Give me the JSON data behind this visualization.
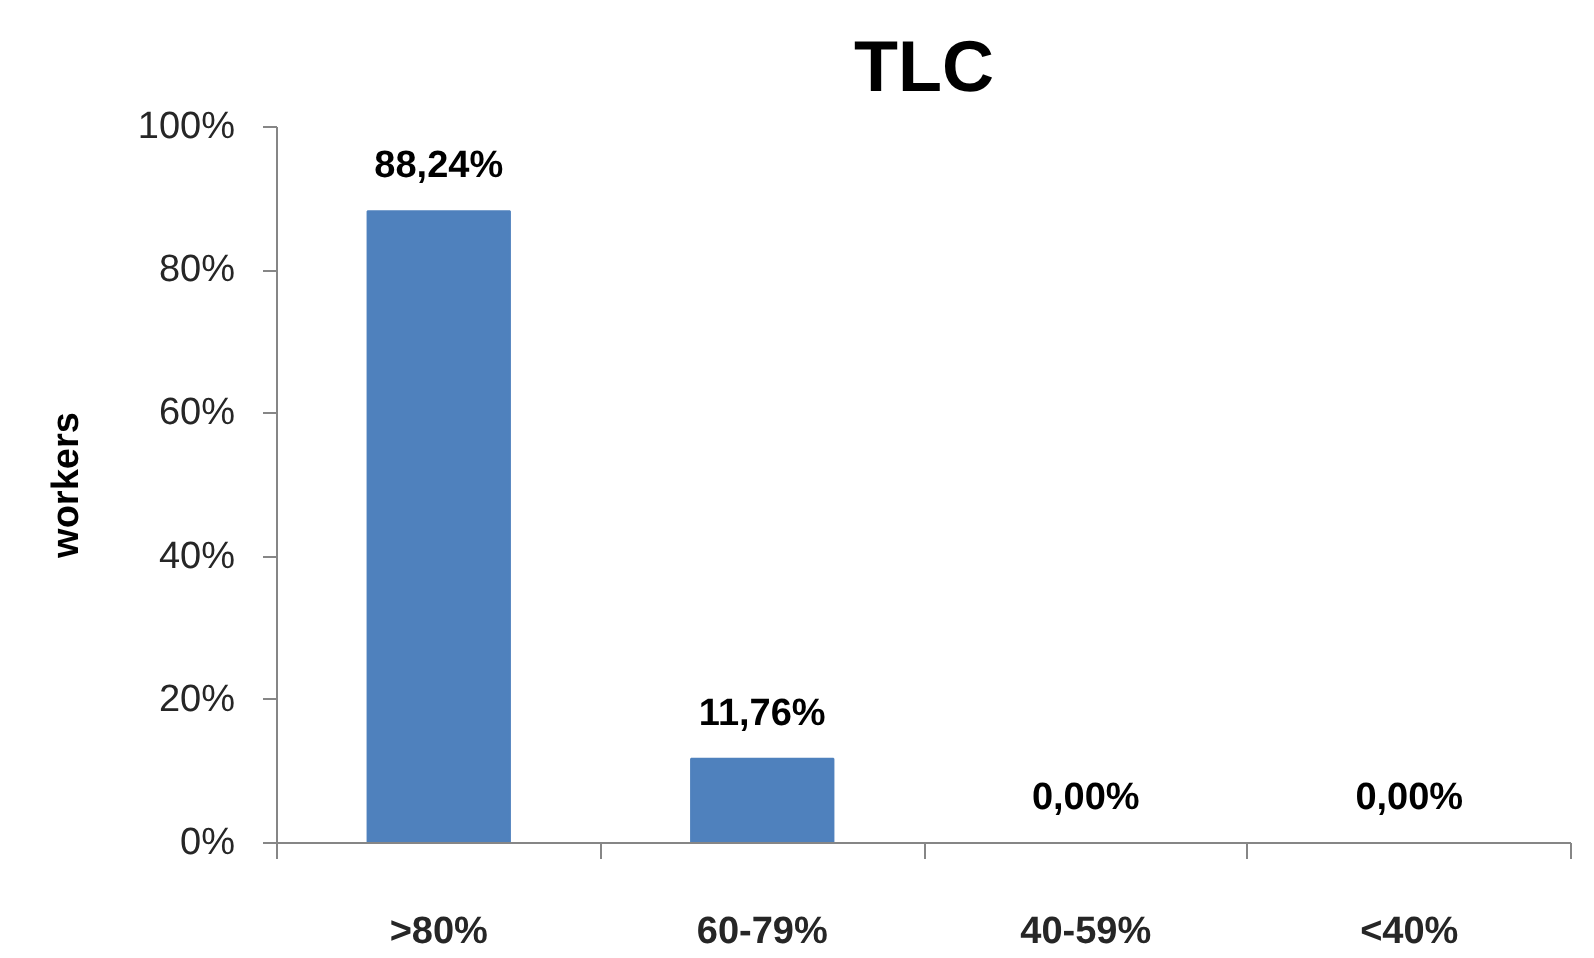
{
  "chart_data": {
    "type": "bar",
    "title": "TLC",
    "ylabel": "workers",
    "categories": [
      ">80%",
      "60-79%",
      "40-59%",
      "<40%"
    ],
    "values": [
      88.24,
      11.76,
      0,
      0
    ],
    "color": "#4f81bd",
    "value_labels": [
      "88,24%",
      "11,76%",
      "0,00%",
      "0,00%"
    ],
    "ylim": [
      0,
      100
    ],
    "yticks": [
      {
        "value": 0,
        "label": "0%"
      },
      {
        "value": 20,
        "label": "20%"
      },
      {
        "value": 40,
        "label": "40%"
      },
      {
        "value": 60,
        "label": "60%"
      },
      {
        "value": 80,
        "label": "80%"
      },
      {
        "value": 100,
        "label": "100%"
      }
    ]
  }
}
